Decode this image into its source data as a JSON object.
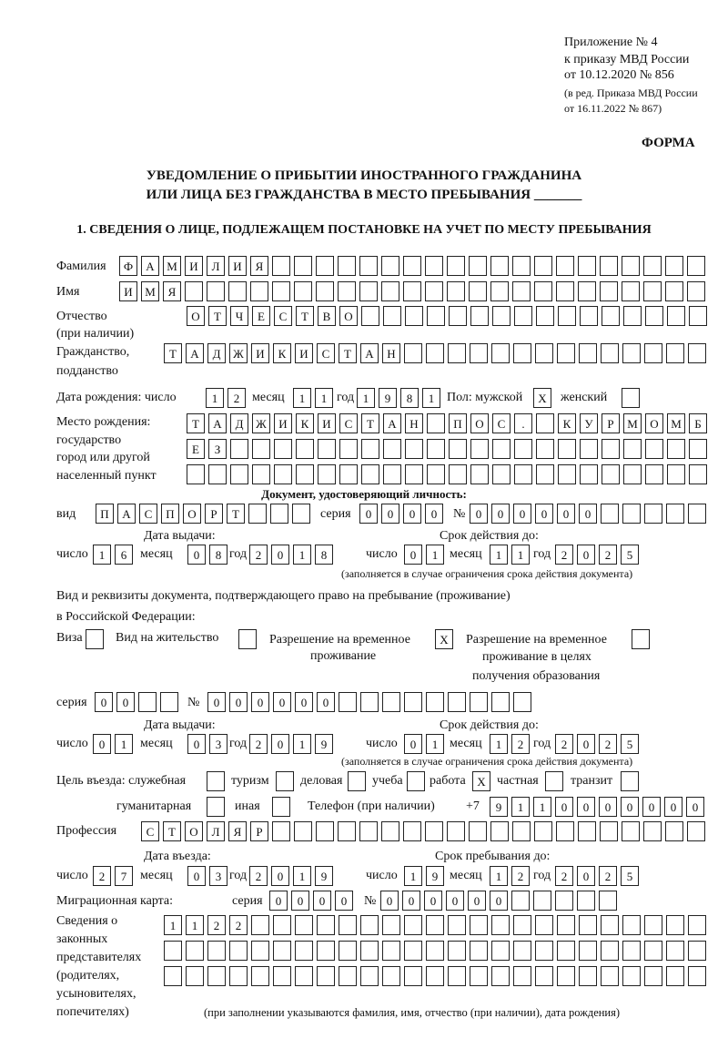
{
  "header": {
    "line1": "Приложение № 4",
    "line2": "к приказу МВД России",
    "line3": "от 10.12.2020 № 856",
    "line4": "(в ред. Приказа МВД России",
    "line5": "от 16.11.2022 № 867)",
    "form": "ФОРМА",
    "title1": "УВЕДОМЛЕНИЕ О ПРИБЫТИИ ИНОСТРАННОГО ГРАЖДАНИНА",
    "title2": "ИЛИ ЛИЦА БЕЗ ГРАЖДАНСТВА В МЕСТО ПРЕБЫВАНИЯ _______",
    "section1": "1. СВЕДЕНИЯ О ЛИЦЕ, ПОДЛЕЖАЩЕМ ПОСТАНОВКЕ НА УЧЕТ ПО МЕСТУ ПРЕБЫВАНИЯ"
  },
  "labels": {
    "surname": "Фамилия",
    "name": "Имя",
    "patronymic": "Отчество",
    "patronymic2": "(при наличии)",
    "citizenship": "Гражданство,",
    "citizenship2": "подданство",
    "birth_date": "Дата рождения:  число",
    "day": "число",
    "month": "месяц",
    "year": "год",
    "sex": "Пол: мужской",
    "female": "женский",
    "birth_place": "Место рождения:",
    "bp2": "государство",
    "bp3": "город или другой",
    "bp4": "населенный пункт",
    "id_doc": "Документ, удостоверяющий личность:",
    "kind": "вид",
    "series": "серия",
    "number": "№",
    "issue_date": "Дата выдачи:",
    "valid_until": "Срок действия до:",
    "validity_note": "(заполняется в случае ограничения срока действия документа)",
    "right_doc": "Вид и реквизиты документа, подтверждающего право на пребывание (проживание)",
    "right_doc2": "в Российской Федерации:",
    "visa": "Виза",
    "residence": "Вид на жительство",
    "trp": "Разрешение на временное",
    "trp2": "проживание",
    "trp_edu": "Разрешение на временное",
    "trp_edu2": "проживание в целях",
    "trp_edu3": "получения образования",
    "purpose": "Цель въезда: служебная",
    "tourism": "туризм",
    "business": "деловая",
    "study": "учеба",
    "work": "работа",
    "private": "частная",
    "transit": "транзит",
    "humanitarian": "гуманитарная",
    "other": "иная",
    "phone": "Телефон (при наличии)",
    "phone_prefix": "+7",
    "profession": "Профессия",
    "entry_date": "Дата въезда:",
    "stay_until": "Срок пребывания до:",
    "migration_card": "Миграционная карта:",
    "reps1": "Сведения о",
    "reps2": "законных",
    "reps3": "представителях",
    "reps4": "(родителях,",
    "reps5": "усыновителях,",
    "reps6": "попечителях)",
    "reps_note": "(при заполнении указываются фамилия, имя, отчество (при наличии), дата рождения)"
  },
  "person": {
    "surname": "ФАМИЛИЯ",
    "name": "ИМЯ",
    "patronymic": "ОТЧЕСТВО",
    "citizenship": "ТАДЖИКИСТАН",
    "birth_day": "12",
    "birth_month": "11",
    "birth_year": "1981",
    "male": "X",
    "female": "",
    "birth_place1": "ТАДЖИКИСТАН ПОС. КУРМОМБ",
    "birth_place2": "ЕЗ",
    "birth_place3": ""
  },
  "id_document": {
    "kind": "ПАСПОРТ",
    "series": "0000",
    "number": "000000",
    "issue_day": "16",
    "issue_month": "08",
    "issue_year": "2018",
    "valid_day": "01",
    "valid_month": "11",
    "valid_year": "2025"
  },
  "right_document": {
    "visa": "",
    "residence": "",
    "trp": "X",
    "trp_edu": "",
    "series": "00",
    "number": "000000",
    "issue_day": "01",
    "issue_month": "03",
    "issue_year": "2019",
    "valid_day": "01",
    "valid_month": "12",
    "valid_year": "2025"
  },
  "purpose": {
    "official": "",
    "tourism": "",
    "business": "",
    "study": "",
    "work": "X",
    "private": "",
    "transit": "",
    "humanitarian": "",
    "other": ""
  },
  "phone": "9110000000",
  "profession": "СТОЛЯР",
  "stay": {
    "entry_day": "27",
    "entry_month": "03",
    "entry_year": "2019",
    "until_day": "19",
    "until_month": "12",
    "until_year": "2025"
  },
  "migration_card": {
    "series": "0000",
    "number": "000000"
  },
  "representatives": {
    "line1": "1122",
    "line2": "",
    "line3": ""
  }
}
